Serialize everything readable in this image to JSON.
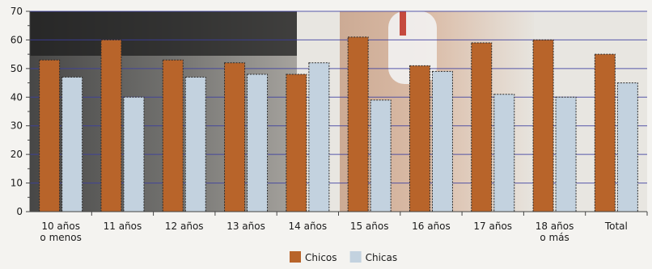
{
  "chart_data": {
    "type": "bar",
    "categories": [
      [
        "10 años",
        "o menos"
      ],
      [
        "11 años"
      ],
      [
        "12 años"
      ],
      [
        "13 años"
      ],
      [
        "14 años"
      ],
      [
        "15 años"
      ],
      [
        "16 años"
      ],
      [
        "17 años"
      ],
      [
        "18 años",
        "o más"
      ],
      [
        "Total"
      ]
    ],
    "series": [
      {
        "name": "Chicos",
        "color": "#b8642a",
        "values": [
          53,
          60,
          53,
          52,
          48,
          61,
          51,
          59,
          60,
          55
        ]
      },
      {
        "name": "Chicas",
        "color": "#c3d2df",
        "values": [
          47,
          40,
          47,
          48,
          52,
          39,
          49,
          41,
          40,
          45
        ]
      }
    ],
    "ylim": [
      0,
      70
    ],
    "yticks": [
      0,
      10,
      20,
      30,
      40,
      50,
      60,
      70
    ],
    "grid": true,
    "legend_position": "bottom-center",
    "gridline_color": "#3c3fa0",
    "background_image": "photo of a computer keyboard and a hand holding a mouse"
  }
}
